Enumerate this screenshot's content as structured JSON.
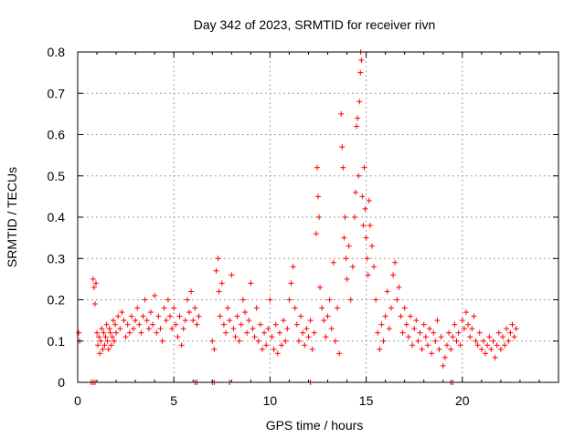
{
  "chart_data": {
    "type": "scatter",
    "title": "Day 342 of 2023, SRMTID for receiver rivn",
    "xlabel": "GPS time / hours",
    "ylabel": "SRMTID / TECUs",
    "xlim": [
      0,
      25
    ],
    "ylim": [
      0,
      0.8
    ],
    "xticks": [
      0,
      5,
      10,
      15,
      20
    ],
    "yticks": [
      0,
      0.1,
      0.2,
      0.3,
      0.4,
      0.5,
      0.6,
      0.7,
      0.8
    ],
    "ytick_labels": [
      "0",
      "0.1",
      "0.2",
      "0.3",
      "0.4",
      "0.5",
      "0.6",
      "0.7",
      "0.8"
    ],
    "grid": true,
    "marker": "+",
    "marker_color": "#ff0000",
    "series": [
      {
        "name": "rivn",
        "points": [
          [
            0.05,
            0.12
          ],
          [
            0.1,
            0.1
          ],
          [
            0.8,
            0.25
          ],
          [
            0.85,
            0.23
          ],
          [
            0.9,
            0.19
          ],
          [
            0.95,
            0.24
          ],
          [
            1.0,
            0.12
          ],
          [
            1.05,
            0.09
          ],
          [
            1.1,
            0.11
          ],
          [
            1.15,
            0.07
          ],
          [
            1.2,
            0.1
          ],
          [
            1.25,
            0.13
          ],
          [
            1.3,
            0.08
          ],
          [
            1.35,
            0.12
          ],
          [
            1.4,
            0.09
          ],
          [
            1.45,
            0.11
          ],
          [
            1.5,
            0.14
          ],
          [
            1.55,
            0.1
          ],
          [
            1.6,
            0.08
          ],
          [
            1.65,
            0.13
          ],
          [
            1.7,
            0.12
          ],
          [
            1.75,
            0.09
          ],
          [
            1.8,
            0.11
          ],
          [
            1.85,
            0.15
          ],
          [
            1.9,
            0.1
          ],
          [
            1.95,
            0.14
          ],
          [
            2.0,
            0.12
          ],
          [
            2.1,
            0.16
          ],
          [
            2.2,
            0.13
          ],
          [
            2.3,
            0.17
          ],
          [
            2.4,
            0.15
          ],
          [
            2.5,
            0.11
          ],
          [
            2.6,
            0.14
          ],
          [
            2.7,
            0.12
          ],
          [
            2.8,
            0.16
          ],
          [
            2.9,
            0.13
          ],
          [
            3.0,
            0.15
          ],
          [
            3.1,
            0.18
          ],
          [
            3.2,
            0.14
          ],
          [
            3.3,
            0.12
          ],
          [
            3.4,
            0.16
          ],
          [
            3.5,
            0.2
          ],
          [
            3.6,
            0.15
          ],
          [
            3.7,
            0.13
          ],
          [
            3.8,
            0.17
          ],
          [
            3.9,
            0.14
          ],
          [
            4.0,
            0.21
          ],
          [
            4.1,
            0.12
          ],
          [
            4.2,
            0.16
          ],
          [
            4.3,
            0.13
          ],
          [
            4.4,
            0.1
          ],
          [
            4.5,
            0.18
          ],
          [
            4.6,
            0.15
          ],
          [
            4.7,
            0.2
          ],
          [
            4.8,
            0.16
          ],
          [
            4.9,
            0.13
          ],
          [
            5.0,
            0.18
          ],
          [
            5.1,
            0.14
          ],
          [
            5.2,
            0.11
          ],
          [
            5.3,
            0.16
          ],
          [
            5.4,
            0.09
          ],
          [
            5.5,
            0.13
          ],
          [
            5.6,
            0.15
          ],
          [
            5.7,
            0.2
          ],
          [
            5.8,
            0.17
          ],
          [
            5.9,
            0.22
          ],
          [
            6.0,
            0.15
          ],
          [
            6.1,
            0.18
          ],
          [
            6.2,
            0.14
          ],
          [
            6.3,
            0.16
          ],
          [
            7.0,
            0.1
          ],
          [
            7.1,
            0.08
          ],
          [
            7.2,
            0.27
          ],
          [
            7.3,
            0.3
          ],
          [
            7.35,
            0.22
          ],
          [
            7.4,
            0.16
          ],
          [
            7.5,
            0.24
          ],
          [
            7.6,
            0.14
          ],
          [
            7.7,
            0.12
          ],
          [
            7.8,
            0.18
          ],
          [
            7.9,
            0.15
          ],
          [
            8.0,
            0.26
          ],
          [
            8.1,
            0.13
          ],
          [
            8.2,
            0.11
          ],
          [
            8.3,
            0.16
          ],
          [
            8.4,
            0.1
          ],
          [
            8.5,
            0.14
          ],
          [
            8.6,
            0.2
          ],
          [
            8.7,
            0.17
          ],
          [
            8.8,
            0.12
          ],
          [
            8.9,
            0.15
          ],
          [
            9.0,
            0.24
          ],
          [
            9.1,
            0.13
          ],
          [
            9.2,
            0.11
          ],
          [
            9.3,
            0.18
          ],
          [
            9.4,
            0.1
          ],
          [
            9.5,
            0.14
          ],
          [
            9.6,
            0.08
          ],
          [
            9.7,
            0.12
          ],
          [
            9.8,
            0.09
          ],
          [
            9.9,
            0.13
          ],
          [
            10.0,
            0.2
          ],
          [
            10.1,
            0.11
          ],
          [
            10.2,
            0.08
          ],
          [
            10.3,
            0.14
          ],
          [
            10.4,
            0.07
          ],
          [
            10.5,
            0.12
          ],
          [
            10.6,
            0.09
          ],
          [
            10.7,
            0.15
          ],
          [
            10.8,
            0.1
          ],
          [
            10.9,
            0.13
          ],
          [
            11.0,
            0.2
          ],
          [
            11.1,
            0.24
          ],
          [
            11.2,
            0.28
          ],
          [
            11.3,
            0.18
          ],
          [
            11.4,
            0.14
          ],
          [
            11.5,
            0.1
          ],
          [
            11.6,
            0.16
          ],
          [
            11.7,
            0.12
          ],
          [
            11.8,
            0.09
          ],
          [
            11.9,
            0.13
          ],
          [
            12.0,
            0.11
          ],
          [
            12.1,
            0.15
          ],
          [
            12.2,
            0.08
          ],
          [
            12.3,
            0.12
          ],
          [
            12.4,
            0.36
          ],
          [
            12.45,
            0.52
          ],
          [
            12.5,
            0.45
          ],
          [
            12.55,
            0.4
          ],
          [
            12.6,
            0.23
          ],
          [
            12.7,
            0.18
          ],
          [
            12.8,
            0.15
          ],
          [
            12.9,
            0.11
          ],
          [
            13.0,
            0.16
          ],
          [
            13.1,
            0.2
          ],
          [
            13.2,
            0.13
          ],
          [
            13.3,
            0.29
          ],
          [
            13.4,
            0.1
          ],
          [
            13.5,
            0.18
          ],
          [
            13.6,
            0.07
          ],
          [
            13.7,
            0.65
          ],
          [
            13.75,
            0.57
          ],
          [
            13.8,
            0.52
          ],
          [
            13.85,
            0.35
          ],
          [
            13.9,
            0.4
          ],
          [
            13.95,
            0.3
          ],
          [
            14.0,
            0.25
          ],
          [
            14.1,
            0.33
          ],
          [
            14.2,
            0.2
          ],
          [
            14.3,
            0.28
          ],
          [
            14.4,
            0.4
          ],
          [
            14.45,
            0.46
          ],
          [
            14.5,
            0.62
          ],
          [
            14.55,
            0.64
          ],
          [
            14.6,
            0.5
          ],
          [
            14.65,
            0.68
          ],
          [
            14.7,
            0.75
          ],
          [
            14.72,
            0.8
          ],
          [
            14.75,
            0.78
          ],
          [
            14.8,
            0.45
          ],
          [
            14.85,
            0.38
          ],
          [
            14.9,
            0.52
          ],
          [
            14.95,
            0.42
          ],
          [
            15.0,
            0.35
          ],
          [
            15.05,
            0.3
          ],
          [
            15.1,
            0.26
          ],
          [
            15.15,
            0.44
          ],
          [
            15.2,
            0.38
          ],
          [
            15.3,
            0.33
          ],
          [
            15.4,
            0.28
          ],
          [
            15.5,
            0.2
          ],
          [
            15.6,
            0.12
          ],
          [
            15.7,
            0.08
          ],
          [
            15.8,
            0.14
          ],
          [
            15.9,
            0.1
          ],
          [
            16.0,
            0.16
          ],
          [
            16.1,
            0.22
          ],
          [
            16.2,
            0.13
          ],
          [
            16.3,
            0.18
          ],
          [
            16.4,
            0.26
          ],
          [
            16.5,
            0.29
          ],
          [
            16.6,
            0.2
          ],
          [
            16.7,
            0.23
          ],
          [
            16.8,
            0.16
          ],
          [
            16.9,
            0.12
          ],
          [
            17.0,
            0.18
          ],
          [
            17.1,
            0.14
          ],
          [
            17.2,
            0.11
          ],
          [
            17.3,
            0.16
          ],
          [
            17.4,
            0.09
          ],
          [
            17.5,
            0.13
          ],
          [
            17.6,
            0.15
          ],
          [
            17.7,
            0.1
          ],
          [
            17.8,
            0.12
          ],
          [
            17.9,
            0.08
          ],
          [
            18.0,
            0.14
          ],
          [
            18.1,
            0.11
          ],
          [
            18.2,
            0.09
          ],
          [
            18.3,
            0.13
          ],
          [
            18.4,
            0.07
          ],
          [
            18.5,
            0.12
          ],
          [
            18.6,
            0.1
          ],
          [
            18.7,
            0.15
          ],
          [
            18.8,
            0.08
          ],
          [
            18.9,
            0.11
          ],
          [
            19.0,
            0.04
          ],
          [
            19.1,
            0.06
          ],
          [
            19.2,
            0.09
          ],
          [
            19.3,
            0.12
          ],
          [
            19.4,
            0.08
          ],
          [
            19.5,
            0.11
          ],
          [
            19.6,
            0.14
          ],
          [
            19.7,
            0.1
          ],
          [
            19.8,
            0.12
          ],
          [
            19.9,
            0.09
          ],
          [
            20.0,
            0.15
          ],
          [
            20.1,
            0.13
          ],
          [
            20.2,
            0.17
          ],
          [
            20.3,
            0.14
          ],
          [
            20.4,
            0.11
          ],
          [
            20.5,
            0.13
          ],
          [
            20.6,
            0.16
          ],
          [
            20.7,
            0.1
          ],
          [
            20.8,
            0.09
          ],
          [
            20.9,
            0.12
          ],
          [
            21.0,
            0.08
          ],
          [
            21.1,
            0.1
          ],
          [
            21.2,
            0.07
          ],
          [
            21.3,
            0.09
          ],
          [
            21.4,
            0.11
          ],
          [
            21.5,
            0.08
          ],
          [
            21.6,
            0.1
          ],
          [
            21.7,
            0.06
          ],
          [
            21.8,
            0.09
          ],
          [
            21.9,
            0.12
          ],
          [
            22.0,
            0.08
          ],
          [
            22.1,
            0.11
          ],
          [
            22.2,
            0.09
          ],
          [
            22.3,
            0.13
          ],
          [
            22.4,
            0.1
          ],
          [
            22.5,
            0.12
          ],
          [
            22.6,
            0.14
          ],
          [
            22.7,
            0.11
          ],
          [
            22.8,
            0.13
          ],
          [
            0.7,
            0.0
          ],
          [
            0.8,
            0.0
          ],
          [
            0.9,
            0.0
          ],
          [
            6.1,
            0.0
          ],
          [
            6.2,
            0.0
          ],
          [
            7.0,
            0.0
          ],
          [
            7.1,
            0.0
          ],
          [
            7.9,
            0.0
          ],
          [
            12.1,
            0.0
          ],
          [
            19.4,
            0.0
          ],
          [
            19.5,
            0.0
          ]
        ]
      }
    ]
  }
}
